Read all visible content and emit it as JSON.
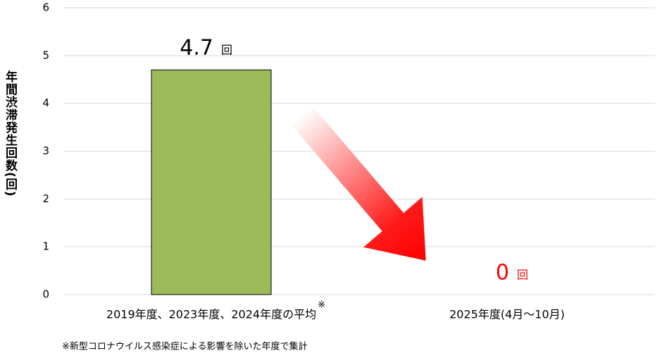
{
  "chart_data": {
    "type": "bar",
    "y_label": "年間渋滞発生回数(回)",
    "categories": [
      "2019年度、2023年度、2024年度の平均",
      "2025年度(4月～10月)"
    ],
    "category_mark": "※",
    "values": [
      4.7,
      0
    ],
    "value_labels": [
      "4.7",
      "0"
    ],
    "value_unit": "回",
    "value_label_colors": [
      "#000000",
      "#ff0000"
    ],
    "color": "#9bbb59",
    "ylim": [
      0,
      6
    ],
    "yticks": [
      0,
      1,
      2,
      3,
      4,
      5,
      6
    ],
    "grid": true,
    "footnote": "※新型コロナウイルス感染症による影響を除いた年度で集計"
  }
}
